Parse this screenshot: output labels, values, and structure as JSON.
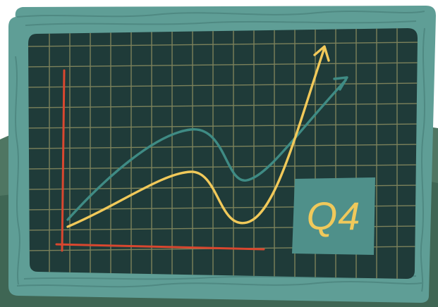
{
  "quarter_card": {
    "label": "Q4"
  },
  "colors": {
    "frame": "#5f9e96",
    "frame_dark": "#427873",
    "board": "#1f3b39",
    "grid_line": "#8d8f62",
    "axes": "#d9472f",
    "series_yellow": "#f1c95a",
    "series_teal": "#3f8b84",
    "card": "#4f908a",
    "background_hill": "#4f7662"
  },
  "icons": {
    "yellow_arrow": "arrow-icon",
    "teal_arrow": "arrow-icon"
  }
}
